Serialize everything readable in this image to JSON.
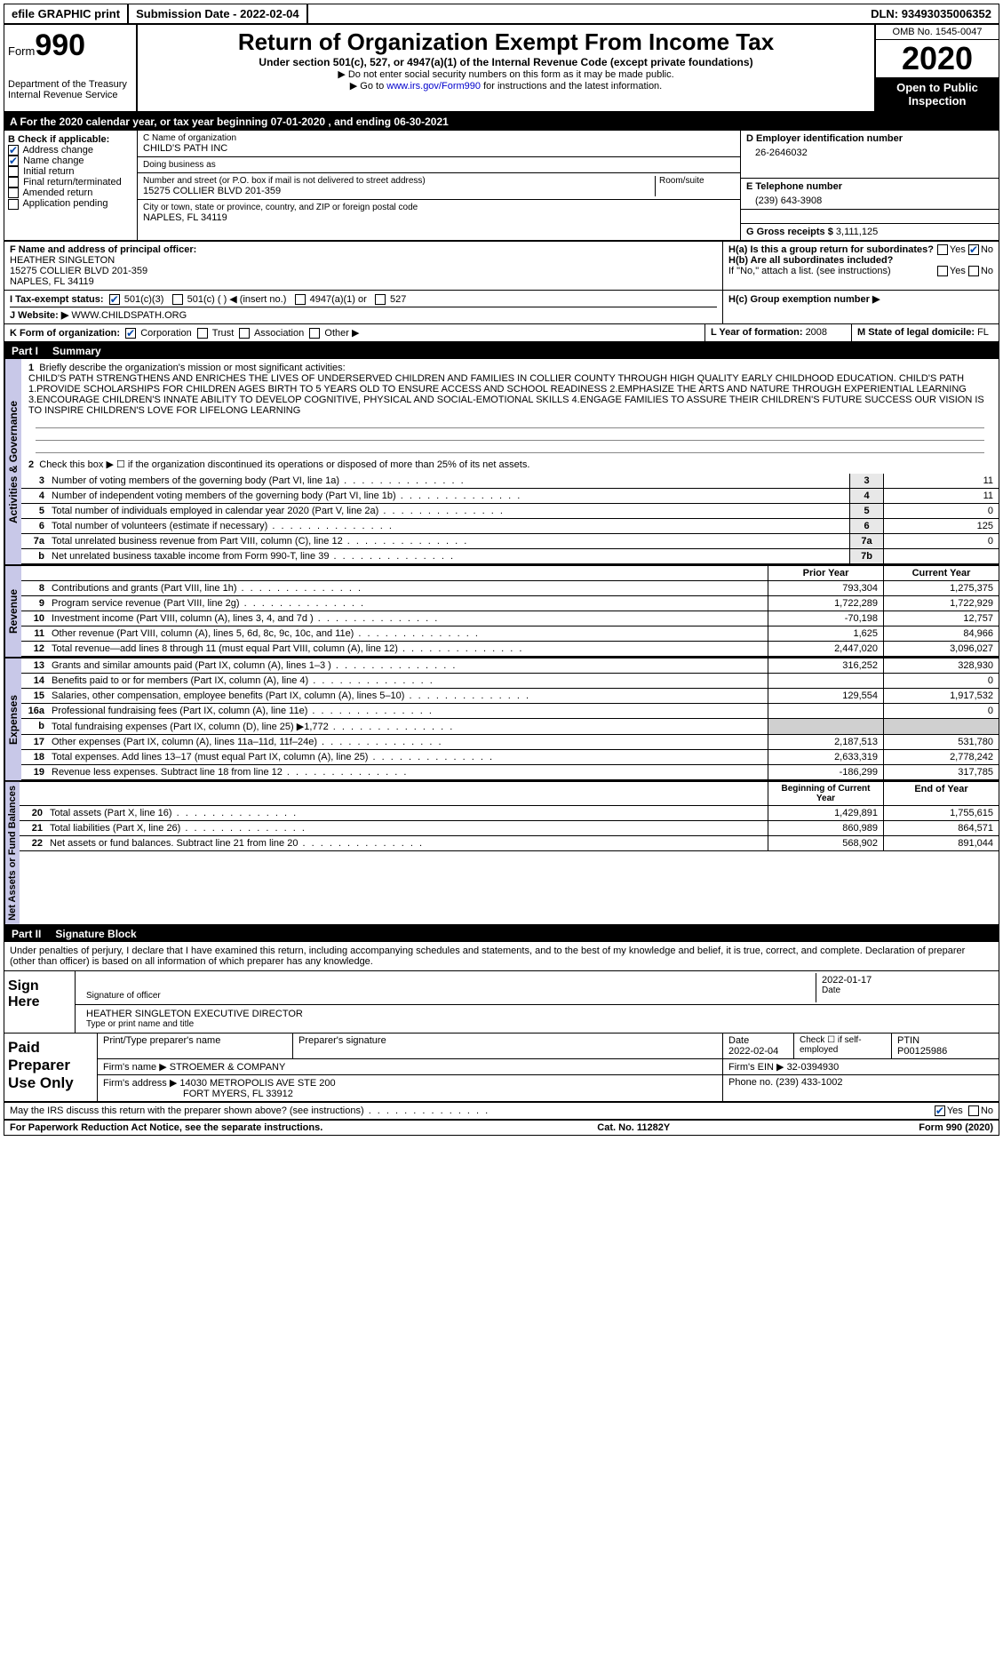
{
  "topbar": {
    "efile": "efile GRAPHIC print",
    "submission_label": "Submission Date - ",
    "submission_date": "2022-02-04",
    "dln_label": "DLN: ",
    "dln": "93493035006352"
  },
  "header": {
    "form_word": "Form",
    "form_num": "990",
    "dept": "Department of the Treasury\nInternal Revenue Service",
    "title": "Return of Organization Exempt From Income Tax",
    "sub": "Under section 501(c), 527, or 4947(a)(1) of the Internal Revenue Code (except private foundations)",
    "note1": "▶ Do not enter social security numbers on this form as it may be made public.",
    "note2_pre": "▶ Go to ",
    "note2_link": "www.irs.gov/Form990",
    "note2_post": " for instructions and the latest information.",
    "omb": "OMB No. 1545-0047",
    "year": "2020",
    "inspect": "Open to Public Inspection"
  },
  "lineA": {
    "pre": "A For the 2020 calendar year, or tax year beginning ",
    "begin": "07-01-2020",
    "mid": " , and ending ",
    "end": "06-30-2021"
  },
  "colB": {
    "title": "B Check if applicable:",
    "items": [
      {
        "label": "Address change",
        "checked": true
      },
      {
        "label": "Name change",
        "checked": true
      },
      {
        "label": "Initial return",
        "checked": false
      },
      {
        "label": "Final return/terminated",
        "checked": false
      },
      {
        "label": "Amended return",
        "checked": false
      },
      {
        "label": "Application pending",
        "checked": false
      }
    ]
  },
  "colC": {
    "name_lbl": "C Name of organization",
    "name": "CHILD'S PATH INC",
    "dba_lbl": "Doing business as",
    "dba": "",
    "street_lbl": "Number and street (or P.O. box if mail is not delivered to street address)",
    "street": "15275 COLLIER BLVD 201-359",
    "room_lbl": "Room/suite",
    "city_lbl": "City or town, state or province, country, and ZIP or foreign postal code",
    "city": "NAPLES, FL  34119"
  },
  "colD": {
    "ein_lbl": "D Employer identification number",
    "ein": "26-2646032",
    "phone_lbl": "E Telephone number",
    "phone": "(239) 643-3908",
    "gross_lbl": "G Gross receipts $ ",
    "gross": "3,111,125"
  },
  "rowF": {
    "lbl": "F  Name and address of principal officer:",
    "name": "HEATHER SINGLETON",
    "addr1": "15275 COLLIER BLVD 201-359",
    "addr2": "NAPLES, FL  34119"
  },
  "rowH": {
    "ha": "H(a)  Is this a group return for subordinates?",
    "hb": "H(b)  Are all subordinates included?",
    "hb_note": "If \"No,\" attach a list. (see instructions)",
    "hc": "H(c)  Group exemption number ▶",
    "yes": "Yes",
    "no": "No"
  },
  "rowI": {
    "lbl": "I   Tax-exempt status:",
    "opts": [
      "501(c)(3)",
      "501(c) (  ) ◀ (insert no.)",
      "4947(a)(1) or",
      "527"
    ]
  },
  "rowJ": {
    "lbl": "J   Website: ▶",
    "val": " WWW.CHILDSPATH.ORG"
  },
  "rowK": {
    "lbl": "K Form of organization:",
    "opts": [
      "Corporation",
      "Trust",
      "Association",
      "Other ▶"
    ],
    "L_lbl": "L Year of formation: ",
    "L_val": "2008",
    "M_lbl": "M State of legal domicile: ",
    "M_val": "FL"
  },
  "part1": {
    "num": "Part I",
    "title": "Summary"
  },
  "mission": {
    "q1": "Briefly describe the organization's mission or most significant activities:",
    "text": "CHILD'S PATH STRENGTHENS AND ENRICHES THE LIVES OF UNDERSERVED CHILDREN AND FAMILIES IN COLLIER COUNTY THROUGH HIGH QUALITY EARLY CHILDHOOD EDUCATION. CHILD'S PATH 1.PROVIDE SCHOLARSHIPS FOR CHILDREN AGES BIRTH TO 5 YEARS OLD TO ENSURE ACCESS AND SCHOOL READINESS 2.EMPHASIZE THE ARTS AND NATURE THROUGH EXPERIENTIAL LEARNING 3.ENCOURAGE CHILDREN'S INNATE ABILITY TO DEVELOP COGNITIVE, PHYSICAL AND SOCIAL-EMOTIONAL SKILLS 4.ENGAGE FAMILIES TO ASSURE THEIR CHILDREN'S FUTURE SUCCESS OUR VISION IS TO INSPIRE CHILDREN'S LOVE FOR LIFELONG LEARNING",
    "q2": "Check this box ▶ ☐  if the organization discontinued its operations or disposed of more than 25% of its net assets."
  },
  "activities": {
    "label": "Activities & Governance",
    "rows": [
      {
        "n": "3",
        "t": "Number of voting members of the governing body (Part VI, line 1a)",
        "box": "3",
        "v": "11"
      },
      {
        "n": "4",
        "t": "Number of independent voting members of the governing body (Part VI, line 1b)",
        "box": "4",
        "v": "11"
      },
      {
        "n": "5",
        "t": "Total number of individuals employed in calendar year 2020 (Part V, line 2a)",
        "box": "5",
        "v": "0"
      },
      {
        "n": "6",
        "t": "Total number of volunteers (estimate if necessary)",
        "box": "6",
        "v": "125"
      },
      {
        "n": "7a",
        "t": "Total unrelated business revenue from Part VIII, column (C), line 12",
        "box": "7a",
        "v": "0"
      },
      {
        "n": "b",
        "t": "Net unrelated business taxable income from Form 990-T, line 39",
        "box": "7b",
        "v": ""
      }
    ]
  },
  "revenue": {
    "label": "Revenue",
    "hdr": {
      "prior": "Prior Year",
      "current": "Current Year"
    },
    "rows": [
      {
        "n": "8",
        "t": "Contributions and grants (Part VIII, line 1h)",
        "p": "793,304",
        "c": "1,275,375"
      },
      {
        "n": "9",
        "t": "Program service revenue (Part VIII, line 2g)",
        "p": "1,722,289",
        "c": "1,722,929"
      },
      {
        "n": "10",
        "t": "Investment income (Part VIII, column (A), lines 3, 4, and 7d )",
        "p": "-70,198",
        "c": "12,757"
      },
      {
        "n": "11",
        "t": "Other revenue (Part VIII, column (A), lines 5, 6d, 8c, 9c, 10c, and 11e)",
        "p": "1,625",
        "c": "84,966"
      },
      {
        "n": "12",
        "t": "Total revenue—add lines 8 through 11 (must equal Part VIII, column (A), line 12)",
        "p": "2,447,020",
        "c": "3,096,027"
      }
    ]
  },
  "expenses": {
    "label": "Expenses",
    "rows": [
      {
        "n": "13",
        "t": "Grants and similar amounts paid (Part IX, column (A), lines 1–3 )",
        "p": "316,252",
        "c": "328,930"
      },
      {
        "n": "14",
        "t": "Benefits paid to or for members (Part IX, column (A), line 4)",
        "p": "",
        "c": "0"
      },
      {
        "n": "15",
        "t": "Salaries, other compensation, employee benefits (Part IX, column (A), lines 5–10)",
        "p": "129,554",
        "c": "1,917,532"
      },
      {
        "n": "16a",
        "t": "Professional fundraising fees (Part IX, column (A), line 11e)",
        "p": "",
        "c": "0"
      },
      {
        "n": "b",
        "t": "Total fundraising expenses (Part IX, column (D), line 25) ▶1,772",
        "p": "GRAY",
        "c": "GRAY"
      },
      {
        "n": "17",
        "t": "Other expenses (Part IX, column (A), lines 11a–11d, 11f–24e)",
        "p": "2,187,513",
        "c": "531,780"
      },
      {
        "n": "18",
        "t": "Total expenses. Add lines 13–17 (must equal Part IX, column (A), line 25)",
        "p": "2,633,319",
        "c": "2,778,242"
      },
      {
        "n": "19",
        "t": "Revenue less expenses. Subtract line 18 from line 12",
        "p": "-186,299",
        "c": "317,785"
      }
    ]
  },
  "netassets": {
    "label": "Net Assets or Fund Balances",
    "hdr": {
      "prior": "Beginning of Current Year",
      "current": "End of Year"
    },
    "rows": [
      {
        "n": "20",
        "t": "Total assets (Part X, line 16)",
        "p": "1,429,891",
        "c": "1,755,615"
      },
      {
        "n": "21",
        "t": "Total liabilities (Part X, line 26)",
        "p": "860,989",
        "c": "864,571"
      },
      {
        "n": "22",
        "t": "Net assets or fund balances. Subtract line 21 from line 20",
        "p": "568,902",
        "c": "891,044"
      }
    ]
  },
  "part2": {
    "num": "Part II",
    "title": "Signature Block"
  },
  "sig": {
    "perjury": "Under penalties of perjury, I declare that I have examined this return, including accompanying schedules and statements, and to the best of my knowledge and belief, it is true, correct, and complete. Declaration of preparer (other than officer) is based on all information of which preparer has any knowledge.",
    "sign_here": "Sign Here",
    "sig_officer": "Signature of officer",
    "date": "Date",
    "sig_date": "2022-01-17",
    "name_title": "HEATHER SINGLETON  EXECUTIVE DIRECTOR",
    "type_name": "Type or print name and title"
  },
  "prep": {
    "label": "Paid Preparer Use Only",
    "hdrs": [
      "Print/Type preparer's name",
      "Preparer's signature",
      "Date",
      "Check ☐ if self-employed",
      "PTIN"
    ],
    "date": "2022-02-04",
    "ptin": "P00125986",
    "firm_name_lbl": "Firm's name    ▶ ",
    "firm_name": "STROEMER & COMPANY",
    "firm_ein_lbl": "Firm's EIN ▶ ",
    "firm_ein": "32-0394930",
    "firm_addr_lbl": "Firm's address ▶ ",
    "firm_addr": "14030 METROPOLIS AVE STE 200",
    "firm_addr2": "FORT MYERS, FL  33912",
    "phone_lbl": "Phone no. ",
    "phone": "(239) 433-1002"
  },
  "discuss": {
    "txt": "May the IRS discuss this return with the preparer shown above? (see instructions)",
    "yes": "Yes",
    "no": "No"
  },
  "footer": {
    "left": "For Paperwork Reduction Act Notice, see the separate instructions.",
    "mid": "Cat. No. 11282Y",
    "right": "Form 990 (2020)"
  }
}
